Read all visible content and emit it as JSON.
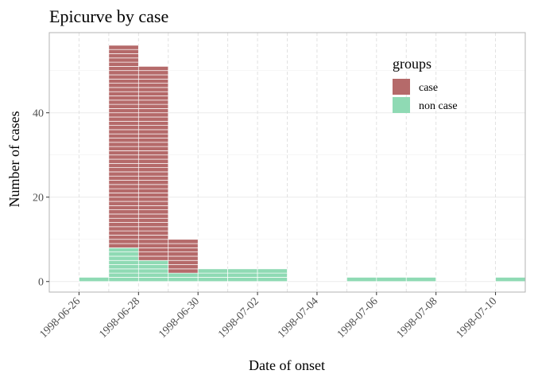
{
  "chart_data": {
    "type": "bar",
    "title": "Epicurve by case",
    "xlabel": "Date of onset",
    "ylabel": "Number of cases",
    "x_tick_labels": [
      "1998-06-26",
      "1998-06-28",
      "1998-06-30",
      "1998-07-02",
      "1998-07-04",
      "1998-07-06",
      "1998-07-08",
      "1998-07-10"
    ],
    "x_ticks": [
      "1998-06-26",
      "1998-06-28",
      "1998-06-30",
      "1998-07-02",
      "1998-07-04",
      "1998-07-06",
      "1998-07-08",
      "1998-07-10"
    ],
    "xlim": [
      "1998-06-25",
      "1998-07-11"
    ],
    "y_ticks": [
      0,
      20,
      40
    ],
    "y_tick_labels": [
      "0",
      "20",
      "40"
    ],
    "ylim": [
      -2.5,
      59
    ],
    "grid": true,
    "stacked": true,
    "legend": {
      "title": "groups",
      "position": "top-right",
      "entries": [
        {
          "label": "case",
          "color": "#b56a6a"
        },
        {
          "label": "non case",
          "color": "#8fdab4"
        }
      ]
    },
    "categories": [
      "1998-06-26",
      "1998-06-27",
      "1998-06-28",
      "1998-06-29",
      "1998-06-30",
      "1998-07-01",
      "1998-07-02",
      "1998-07-03",
      "1998-07-04",
      "1998-07-05",
      "1998-07-06",
      "1998-07-07",
      "1998-07-08",
      "1998-07-09",
      "1998-07-10"
    ],
    "series": [
      {
        "name": "non case",
        "color": "#8fdab4",
        "values": [
          1,
          8,
          5,
          2,
          3,
          3,
          3,
          0,
          0,
          1,
          1,
          1,
          0,
          0,
          1
        ]
      },
      {
        "name": "case",
        "color": "#b56a6a",
        "values": [
          0,
          48,
          46,
          8,
          0,
          0,
          0,
          0,
          0,
          0,
          0,
          0,
          0,
          0,
          0
        ]
      }
    ]
  }
}
